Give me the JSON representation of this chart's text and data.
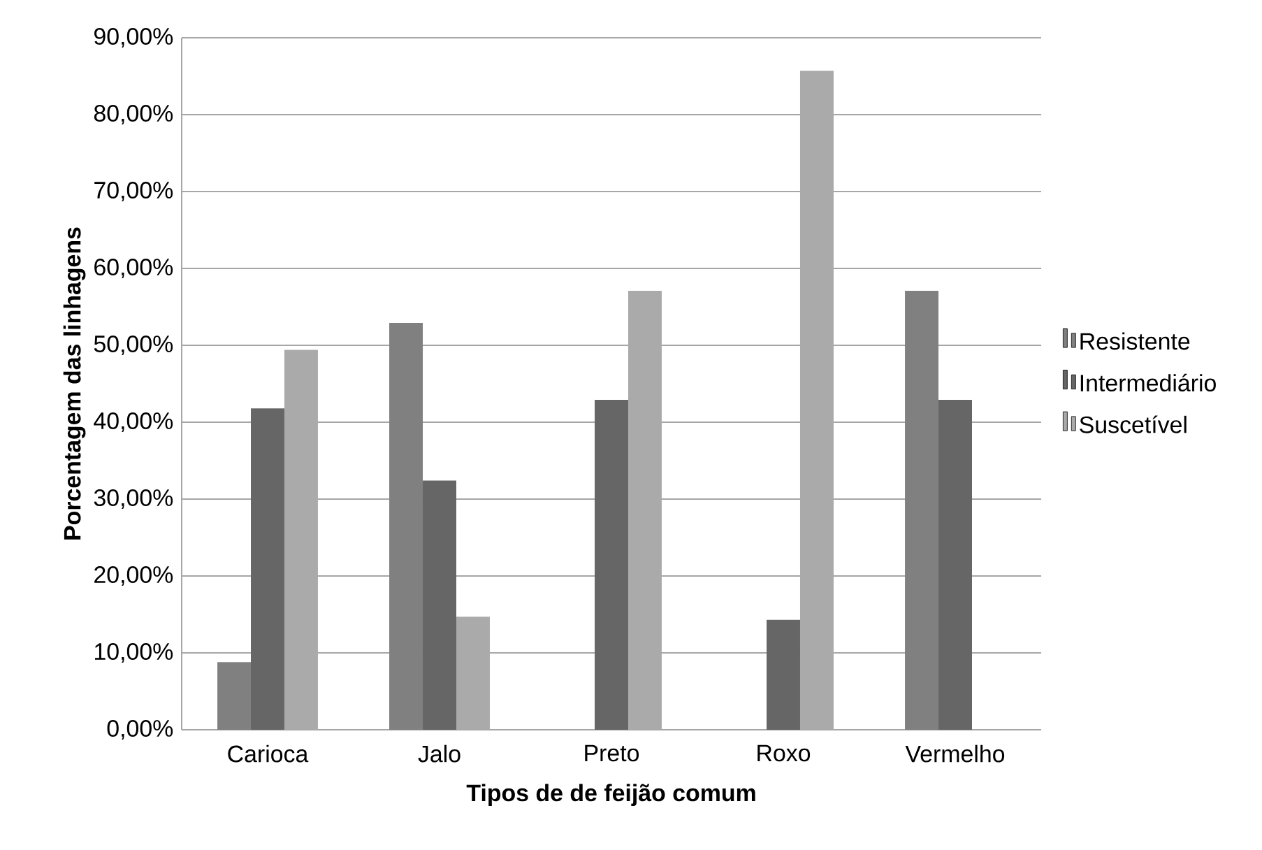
{
  "chart_data": {
    "type": "bar",
    "xlabel": "Tipos de de feijão comum",
    "ylabel": "Porcentagem das linhagens",
    "categories": [
      "Carioca",
      "Jalo",
      "Preto",
      "Roxo",
      "Vermelho"
    ],
    "series": [
      {
        "name": "Resistente",
        "color": "#808080",
        "values": [
          8.8,
          52.9,
          0,
          0,
          57.1
        ]
      },
      {
        "name": "Intermediário",
        "color": "#666666",
        "values": [
          41.8,
          32.4,
          42.9,
          14.3,
          42.9
        ]
      },
      {
        "name": "Suscetível",
        "color": "#aaaaaa",
        "values": [
          49.4,
          14.7,
          57.1,
          85.7,
          0
        ]
      }
    ],
    "ylim": [
      0,
      90
    ],
    "yticks": [
      {
        "value": 0,
        "label": "0,00%"
      },
      {
        "value": 10,
        "label": "10,00%"
      },
      {
        "value": 20,
        "label": "20,00%"
      },
      {
        "value": 30,
        "label": "30,00%"
      },
      {
        "value": 40,
        "label": "40,00%"
      },
      {
        "value": 50,
        "label": "50,00%"
      },
      {
        "value": 60,
        "label": "60,00%"
      },
      {
        "value": 70,
        "label": "70,00%"
      },
      {
        "value": 80,
        "label": "80,00%"
      },
      {
        "value": 90,
        "label": "90,00%"
      }
    ],
    "grid": "y",
    "legend": "right"
  }
}
